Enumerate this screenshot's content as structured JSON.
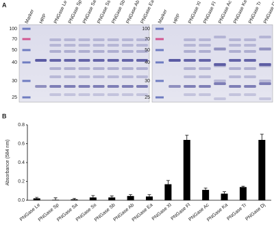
{
  "panel_a": {
    "label": "A",
    "gels": [
      {
        "lanes": [
          "Marker",
          "HRP",
          "PNGase Le",
          "PNGase Sp",
          "PNGase Sa",
          "PNGase Ss",
          "PNGase Sb",
          "PNGase Ab",
          "PNGase Ea"
        ],
        "markers": [
          100,
          70,
          50,
          40,
          30,
          25
        ]
      },
      {
        "lanes": [
          "Marker",
          "HRP",
          "PNGase Xl",
          "PNGase Fl",
          "PNGase Ac",
          "PNGase Ka",
          "PNGase Tr",
          "PNGase Dj"
        ],
        "markers": [
          100,
          70,
          50,
          40,
          30,
          25
        ]
      }
    ]
  },
  "chart_data": {
    "type": "bar",
    "panel_label": "B",
    "y_label": "Absorbance (584 nm)",
    "categories": [
      "PNGase Le",
      "PNGase Sp",
      "PNGase Sa",
      "PNGase Ss",
      "PNGase Sb",
      "PNGase Ab",
      "PNGase Ea",
      "PNGase Xl",
      "PNGase Fl",
      "PNGase Ac",
      "PNGase Ka",
      "PNGase Tr",
      "PNGase Dj"
    ],
    "values": [
      0.02,
      0.005,
      0.01,
      0.03,
      0.03,
      0.045,
      0.04,
      0.17,
      0.64,
      0.11,
      0.07,
      0.14,
      0.64
    ],
    "errors": [
      0.01,
      0.02,
      0.01,
      0.02,
      0.015,
      0.015,
      0.02,
      0.04,
      0.05,
      0.02,
      0.02,
      0.01,
      0.06
    ],
    "color": "#000000",
    "ylim": [
      0,
      0.8
    ],
    "yticks": [
      {
        "value": 0,
        "label": "0.0"
      },
      0.2,
      0.4,
      0.6,
      0.8
    ]
  }
}
